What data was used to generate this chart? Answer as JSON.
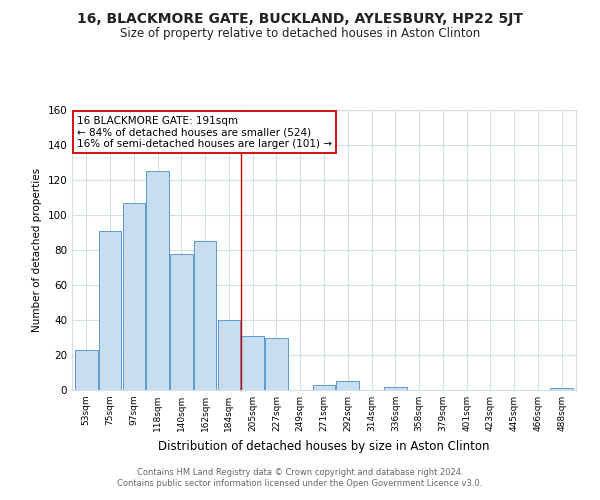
{
  "title": "16, BLACKMORE GATE, BUCKLAND, AYLESBURY, HP22 5JT",
  "subtitle": "Size of property relative to detached houses in Aston Clinton",
  "xlabel": "Distribution of detached houses by size in Aston Clinton",
  "ylabel": "Number of detached properties",
  "bar_labels": [
    "53sqm",
    "75sqm",
    "97sqm",
    "118sqm",
    "140sqm",
    "162sqm",
    "184sqm",
    "205sqm",
    "227sqm",
    "249sqm",
    "271sqm",
    "292sqm",
    "314sqm",
    "336sqm",
    "358sqm",
    "379sqm",
    "401sqm",
    "423sqm",
    "445sqm",
    "466sqm",
    "488sqm"
  ],
  "bar_values": [
    23,
    91,
    107,
    125,
    78,
    85,
    40,
    31,
    30,
    0,
    3,
    5,
    0,
    2,
    0,
    0,
    0,
    0,
    0,
    0,
    1
  ],
  "bar_color": "#c9ddf0",
  "bar_edge_color": "#5b9bd5",
  "vline_color": "#cc0000",
  "annotation_title": "16 BLACKMORE GATE: 191sqm",
  "annotation_line1": "← 84% of detached houses are smaller (524)",
  "annotation_line2": "16% of semi-detached houses are larger (101) →",
  "annotation_box_color": "#ffffff",
  "annotation_box_edge": "#cc0000",
  "ylim": [
    0,
    160
  ],
  "yticks": [
    0,
    20,
    40,
    60,
    80,
    100,
    120,
    140,
    160
  ],
  "footer_line1": "Contains HM Land Registry data © Crown copyright and database right 2024.",
  "footer_line2": "Contains public sector information licensed under the Open Government Licence v3.0.",
  "bg_color": "#ffffff",
  "grid_color": "#d4dde8"
}
